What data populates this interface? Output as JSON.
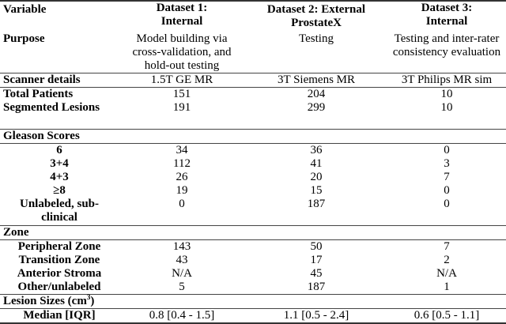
{
  "headers": [
    "Variable",
    "Dataset 1: Internal",
    "Dataset 2: External ProstateX",
    "Dataset 3: Internal"
  ],
  "purpose": {
    "label": "Purpose",
    "values": [
      "Model building via cross-validation, and hold-out testing",
      "Testing",
      "Testing and inter-rater consistency evaluation"
    ]
  },
  "scanner": {
    "label": "Scanner details",
    "values": [
      "1.5T GE MR",
      "3T Siemens MR",
      "3T Philips MR sim"
    ]
  },
  "total_patients": {
    "label": "Total Patients",
    "values": [
      "151",
      "204",
      "10"
    ]
  },
  "segmented_lesions": {
    "label": "Segmented Lesions",
    "values": [
      "191",
      "299",
      "10"
    ]
  },
  "gleason": {
    "label": "Gleason Scores",
    "rows": [
      {
        "label": "6",
        "values": [
          "34",
          "36",
          "0"
        ]
      },
      {
        "label": "3+4",
        "values": [
          "112",
          "41",
          "3"
        ]
      },
      {
        "label": "4+3",
        "values": [
          "26",
          "20",
          "7"
        ]
      },
      {
        "label": "≥8",
        "values": [
          "19",
          "15",
          "0"
        ]
      },
      {
        "label": "Unlabeled, sub-clinical",
        "values": [
          "0",
          "187",
          "0"
        ]
      }
    ]
  },
  "zone": {
    "label": "Zone",
    "rows": [
      {
        "label": "Peripheral Zone",
        "values": [
          "143",
          "50",
          "7"
        ]
      },
      {
        "label": "Transition Zone",
        "values": [
          "43",
          "17",
          "2"
        ]
      },
      {
        "label": "Anterior Stroma",
        "values": [
          "N/A",
          "45",
          "N/A"
        ]
      },
      {
        "label": "Other/unlabeled",
        "values": [
          "5",
          "187",
          "1"
        ]
      }
    ]
  },
  "lesion_sizes": {
    "label": "Lesion Sizes (cm",
    "label_sup": "3",
    "label_end": ")",
    "rows": [
      {
        "label": "Median [IQR]",
        "values": [
          "0.8 [0.4 - 1.5]",
          "1.1 [0.5 - 2.4]",
          "0.6 [0.5 - 1.1]"
        ]
      }
    ]
  }
}
